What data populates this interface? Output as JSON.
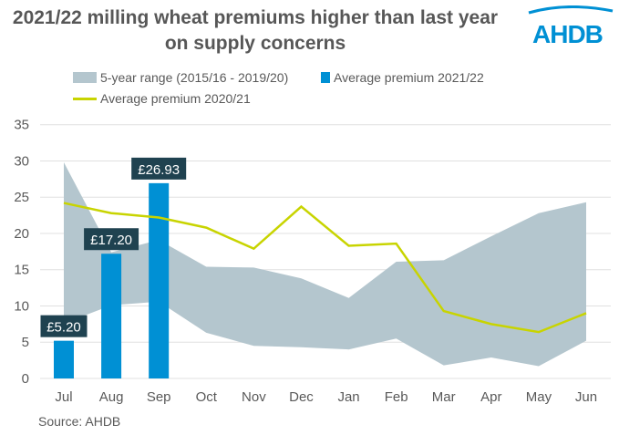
{
  "chart_data": {
    "type": "bar",
    "title": "2021/22 milling wheat premiums higher than last year on supply concerns",
    "categories": [
      "Jul",
      "Aug",
      "Sep",
      "Oct",
      "Nov",
      "Dec",
      "Jan",
      "Feb",
      "Mar",
      "Apr",
      "May",
      "Jun"
    ],
    "ylim": [
      0,
      35
    ],
    "yticks": [
      0,
      5,
      10,
      15,
      20,
      25,
      30,
      35
    ],
    "grid": true,
    "legend_position": "top",
    "series": [
      {
        "name": "5-year range (2015/16 - 2019/20)",
        "type": "range-area",
        "color": "#b4c6ce",
        "upper": [
          29.8,
          17.4,
          19.1,
          15.4,
          15.3,
          13.8,
          11.1,
          16.1,
          16.3,
          19.6,
          22.8,
          24.3
        ],
        "lower": [
          7.6,
          10.1,
          10.6,
          6.3,
          4.5,
          4.3,
          4.0,
          5.5,
          1.8,
          2.9,
          1.7,
          5.2
        ]
      },
      {
        "name": "Average premium 2021/22",
        "type": "bar",
        "color": "#0090d4",
        "values": [
          5.2,
          17.2,
          26.93,
          null,
          null,
          null,
          null,
          null,
          null,
          null,
          null,
          null
        ],
        "data_labels": [
          "£5.20",
          "£17.20",
          "£26.93"
        ]
      },
      {
        "name": "Average premium 2020/21",
        "type": "line",
        "color": "#c8d400",
        "values": [
          24.2,
          22.8,
          22.2,
          20.8,
          17.9,
          23.7,
          18.3,
          18.6,
          9.3,
          7.5,
          6.4,
          9.0
        ]
      }
    ]
  },
  "source": "Source: AHDB",
  "logo": "AHDB",
  "colors": {
    "label_bg": "#1f4250",
    "grid": "#e0e0e0",
    "text": "#595959"
  }
}
